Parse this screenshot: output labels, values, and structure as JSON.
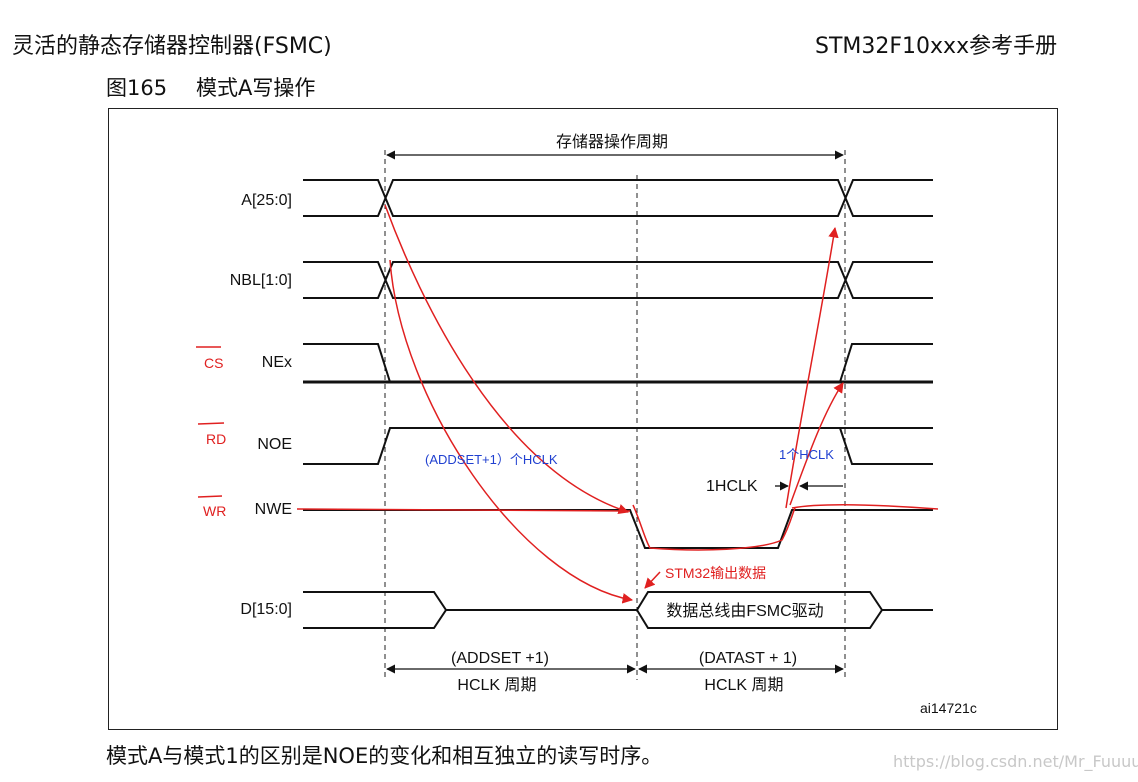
{
  "header": {
    "left": "灵活的静态存储器控制器(FSMC)",
    "right": "STM32F10xxx参考手册"
  },
  "figure": {
    "number": "图165",
    "title": "模式A写操作",
    "id_label": "ai14721c"
  },
  "timing": {
    "cycle_label": "存储器操作周期",
    "signals": {
      "address": "A[25:0]",
      "nbl": "NBL[1:0]",
      "nex": "NEx",
      "noe": "NOE",
      "nwe": "NWE",
      "data": "D[15:0]"
    },
    "data_driven_label": "数据总线由FSMC驱动",
    "hclk_label": "1HCLK",
    "addset_label": "(ADDSET +1)",
    "addset_unit": "HCLK 周期",
    "datast_label": "(DATAST + 1)",
    "datast_unit": "HCLK 周期"
  },
  "annotations": {
    "cs": "CS",
    "rd": "RD",
    "wr": "WR",
    "addset_hclk": "(ADDSET+1）个HCLK",
    "one_hclk": "1个HCLK",
    "stm32_output": "STM32输出数据",
    "color_red": "#e02020",
    "color_blue": "#2040d0"
  },
  "caption": "模式A与模式1的区别是NOE的变化和相互独立的读写时序。",
  "watermark": "https://blog.csdn.net/Mr_Fuuuuuu"
}
